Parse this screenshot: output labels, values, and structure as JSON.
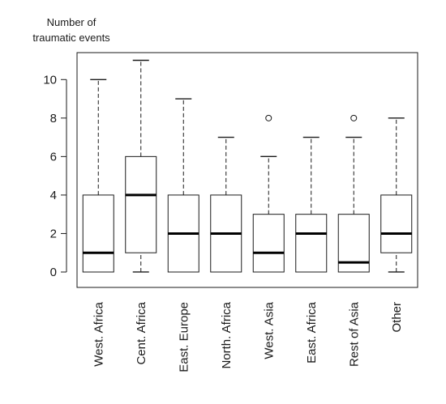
{
  "chart_data": {
    "type": "boxplot",
    "ylabel": "Number of traumatic events",
    "ylabel_lines": [
      "Number of",
      "traumatic events"
    ],
    "xlabel": "",
    "ylim": [
      -0.8,
      11.4
    ],
    "yticks": [
      0,
      2,
      4,
      6,
      8,
      10
    ],
    "categories": [
      "West. Africa",
      "Cent. Africa",
      "East. Europe",
      "North. Africa",
      "West. Asia",
      "East. Africa",
      "Rest of Asia",
      "Other"
    ],
    "boxes": [
      {
        "category": "West. Africa",
        "min": 0,
        "q1": 0,
        "median": 1,
        "q3": 4,
        "max": 10,
        "outliers": []
      },
      {
        "category": "Cent. Africa",
        "min": 0,
        "q1": 1,
        "median": 4,
        "q3": 6,
        "max": 11,
        "outliers": []
      },
      {
        "category": "East. Europe",
        "min": 0,
        "q1": 0,
        "median": 2,
        "q3": 4,
        "max": 9,
        "outliers": []
      },
      {
        "category": "North. Africa",
        "min": 0,
        "q1": 0,
        "median": 2,
        "q3": 4,
        "max": 7,
        "outliers": []
      },
      {
        "category": "West. Asia",
        "min": 0,
        "q1": 0,
        "median": 1,
        "q3": 3,
        "max": 6,
        "outliers": [
          8
        ]
      },
      {
        "category": "East. Africa",
        "min": 0,
        "q1": 0,
        "median": 2,
        "q3": 3,
        "max": 7,
        "outliers": []
      },
      {
        "category": "Rest of Asia",
        "min": 0,
        "q1": 0,
        "median": 0.5,
        "q3": 3,
        "max": 7,
        "outliers": [
          8
        ]
      },
      {
        "category": "Other",
        "min": 0,
        "q1": 1,
        "median": 2,
        "q3": 4,
        "max": 8,
        "outliers": []
      }
    ]
  }
}
